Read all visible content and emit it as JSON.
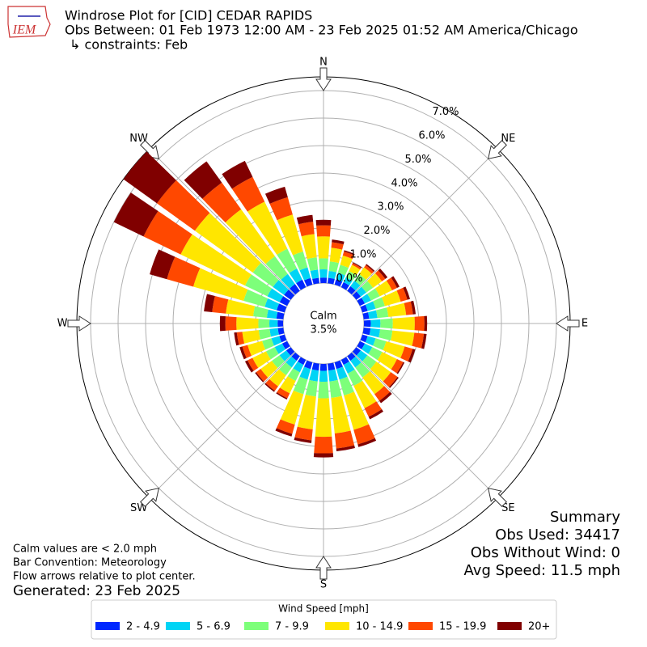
{
  "chart_data": {
    "type": "windrose",
    "title": "Windrose Plot for [CID] CEDAR RAPIDS",
    "subtitle": "Obs Between: 01 Feb 1973 12:00 AM - 23 Feb 2025 01:52 AM America/Chicago",
    "constraints": "↳ constraints: Feb",
    "logo_text": "IEM",
    "calm_label": "Calm",
    "calm_value": 3.5,
    "calm_value_label": "3.5%",
    "x": [
      0,
      10,
      20,
      30,
      40,
      50,
      60,
      70,
      80,
      90,
      100,
      110,
      120,
      130,
      140,
      150,
      160,
      170,
      180,
      190,
      200,
      210,
      220,
      230,
      240,
      250,
      260,
      270,
      280,
      290,
      300,
      310,
      320,
      330,
      340,
      350
    ],
    "xticks": [
      {
        "value": 0,
        "label": "N"
      },
      {
        "value": 45,
        "label": "NE"
      },
      {
        "value": 90,
        "label": "E"
      },
      {
        "value": 135,
        "label": "SE"
      },
      {
        "value": 180,
        "label": "S"
      },
      {
        "value": 225,
        "label": "SW"
      },
      {
        "value": 270,
        "label": "W"
      },
      {
        "value": 315,
        "label": "NW"
      }
    ],
    "ylim": [
      0,
      7.5
    ],
    "yticks": [
      {
        "value": 0,
        "label": "0.0%"
      },
      {
        "value": 1,
        "label": "1.0%"
      },
      {
        "value": 2,
        "label": "2.0%"
      },
      {
        "value": 3,
        "label": "3.0%"
      },
      {
        "value": 4,
        "label": "4.0%"
      },
      {
        "value": 5,
        "label": "5.0%"
      },
      {
        "value": 6,
        "label": "6.0%"
      },
      {
        "value": 7,
        "label": "7.0%"
      }
    ],
    "grid": true,
    "legend_title": "Wind Speed [mph]",
    "legend": "bottom",
    "series": [
      {
        "name": "2 - 4.9",
        "color": "#0028ff",
        "values": [
          0.2,
          0.2,
          0.2,
          0.2,
          0.2,
          0.2,
          0.2,
          0.2,
          0.2,
          0.25,
          0.25,
          0.2,
          0.2,
          0.2,
          0.2,
          0.2,
          0.25,
          0.25,
          0.25,
          0.25,
          0.25,
          0.2,
          0.2,
          0.2,
          0.2,
          0.2,
          0.2,
          0.2,
          0.25,
          0.3,
          0.3,
          0.3,
          0.3,
          0.3,
          0.25,
          0.2
        ]
      },
      {
        "name": "5 - 6.9",
        "color": "#00d4f5",
        "values": [
          0.3,
          0.25,
          0.25,
          0.2,
          0.25,
          0.25,
          0.25,
          0.3,
          0.3,
          0.35,
          0.35,
          0.3,
          0.3,
          0.3,
          0.3,
          0.35,
          0.4,
          0.4,
          0.4,
          0.4,
          0.4,
          0.3,
          0.3,
          0.3,
          0.3,
          0.3,
          0.3,
          0.3,
          0.35,
          0.45,
          0.5,
          0.5,
          0.45,
          0.45,
          0.4,
          0.3
        ]
      },
      {
        "name": "7 - 9.9",
        "color": "#7dff7a",
        "values": [
          0.4,
          0.35,
          0.3,
          0.25,
          0.3,
          0.3,
          0.35,
          0.35,
          0.4,
          0.45,
          0.45,
          0.4,
          0.4,
          0.4,
          0.45,
          0.5,
          0.6,
          0.6,
          0.6,
          0.55,
          0.55,
          0.35,
          0.35,
          0.35,
          0.35,
          0.35,
          0.4,
          0.4,
          0.5,
          0.8,
          0.9,
          0.9,
          0.8,
          0.8,
          0.6,
          0.45
        ]
      },
      {
        "name": "10 - 14.9",
        "color": "#ffe600",
        "values": [
          0.8,
          0.5,
          0.35,
          0.25,
          0.3,
          0.4,
          0.5,
          0.6,
          0.65,
          0.8,
          0.8,
          0.7,
          0.6,
          0.65,
          0.75,
          0.9,
          1.3,
          1.3,
          1.4,
          1.2,
          1.15,
          0.5,
          0.5,
          0.5,
          0.55,
          0.55,
          0.6,
          0.8,
          1.0,
          1.9,
          2.6,
          2.6,
          2.1,
          1.9,
          1.4,
          0.85
        ]
      },
      {
        "name": "15 - 19.9",
        "color": "#ff4800",
        "values": [
          0.4,
          0.2,
          0.15,
          0.07,
          0.1,
          0.15,
          0.2,
          0.25,
          0.25,
          0.35,
          0.35,
          0.3,
          0.25,
          0.3,
          0.3,
          0.35,
          0.55,
          0.55,
          0.6,
          0.4,
          0.35,
          0.2,
          0.2,
          0.2,
          0.2,
          0.2,
          0.2,
          0.4,
          0.5,
          1.0,
          1.5,
          1.7,
          1.2,
          1.0,
          0.65,
          0.45
        ]
      },
      {
        "name": "20+",
        "color": "#800000",
        "values": [
          0.2,
          0.1,
          0.05,
          0.03,
          0.05,
          0.1,
          0.1,
          0.1,
          0.1,
          0.1,
          0.1,
          0.1,
          0.05,
          0.05,
          0.1,
          0.1,
          0.1,
          0.1,
          0.15,
          0.1,
          0.1,
          0.05,
          0.05,
          0.05,
          0.1,
          0.1,
          0.1,
          0.2,
          0.3,
          0.65,
          1.2,
          1.5,
          0.95,
          0.65,
          0.4,
          0.25
        ]
      }
    ]
  },
  "notes": [
    "Calm values are < 2.0 mph",
    "Bar Convention: Meteorology",
    "Flow arrows relative to plot center."
  ],
  "generated": "Generated: 23 Feb 2025",
  "summary": [
    "Summary",
    "Obs Used: 34417",
    "Obs Without Wind: 0",
    "Avg Speed: 11.5 mph"
  ]
}
